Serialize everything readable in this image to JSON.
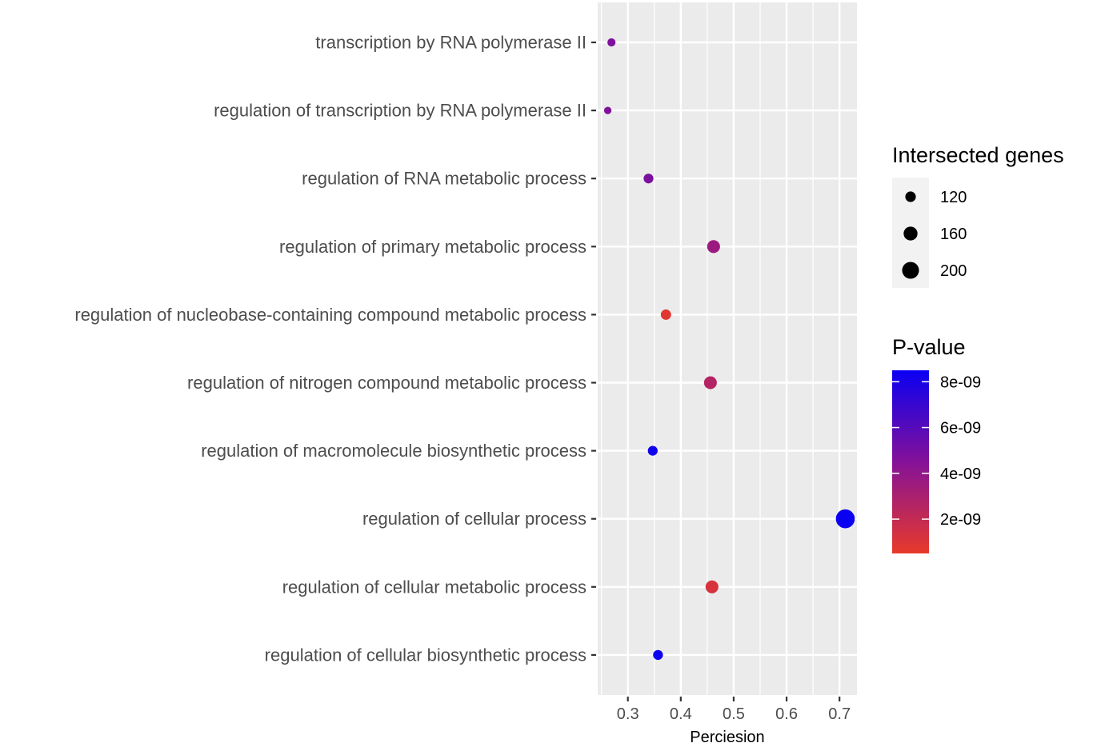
{
  "chart_data": {
    "type": "scatter",
    "xlabel": "Perciesion",
    "ylabel": "",
    "xlim": [
      0.243,
      0.733
    ],
    "x_ticks": [
      "0.3",
      "0.4",
      "0.5",
      "0.6",
      "0.7"
    ],
    "categories": [
      "transcription by RNA polymerase II",
      "regulation of transcription by RNA polymerase II",
      "regulation of RNA metabolic process",
      "regulation of primary metabolic process",
      "regulation of nucleobase-containing compound metabolic process",
      "regulation of nitrogen compound metabolic process",
      "regulation of macromolecule biosynthetic process",
      "regulation of cellular process",
      "regulation of cellular metabolic process",
      "regulation of cellular biosynthetic process"
    ],
    "points": [
      {
        "x": 0.269,
        "genes": 95,
        "pvalue": 4.7e-09
      },
      {
        "x": 0.262,
        "genes": 88,
        "pvalue": 4.6e-09
      },
      {
        "x": 0.339,
        "genes": 112,
        "pvalue": 4.8e-09
      },
      {
        "x": 0.462,
        "genes": 148,
        "pvalue": 3.6e-09
      },
      {
        "x": 0.372,
        "genes": 118,
        "pvalue": 8e-10
      },
      {
        "x": 0.456,
        "genes": 147,
        "pvalue": 2.6e-09
      },
      {
        "x": 0.347,
        "genes": 112,
        "pvalue": 8.3e-09
      },
      {
        "x": 0.711,
        "genes": 230,
        "pvalue": 8.5e-09
      },
      {
        "x": 0.459,
        "genes": 147,
        "pvalue": 1.2e-09
      },
      {
        "x": 0.357,
        "genes": 113,
        "pvalue": 8.4e-09
      }
    ],
    "size_legend": {
      "title": "Intersected genes",
      "items": [
        {
          "label": "120",
          "value": 120
        },
        {
          "label": "160",
          "value": 160
        },
        {
          "label": "200",
          "value": 200
        }
      ]
    },
    "color_legend": {
      "title": "P-value",
      "low_color": "#e83a2a",
      "high_color": "#0a00f2",
      "range": [
        5e-10,
        8.5e-09
      ],
      "ticks": [
        {
          "label": "8e-09",
          "value": 8e-09
        },
        {
          "label": "6e-09",
          "value": 6e-09
        },
        {
          "label": "4e-09",
          "value": 4e-09
        },
        {
          "label": "2e-09",
          "value": 2e-09
        }
      ]
    },
    "panel_background": "#ebebeb",
    "grid_color": "#ffffff",
    "grid": true,
    "legend_position": "right"
  }
}
